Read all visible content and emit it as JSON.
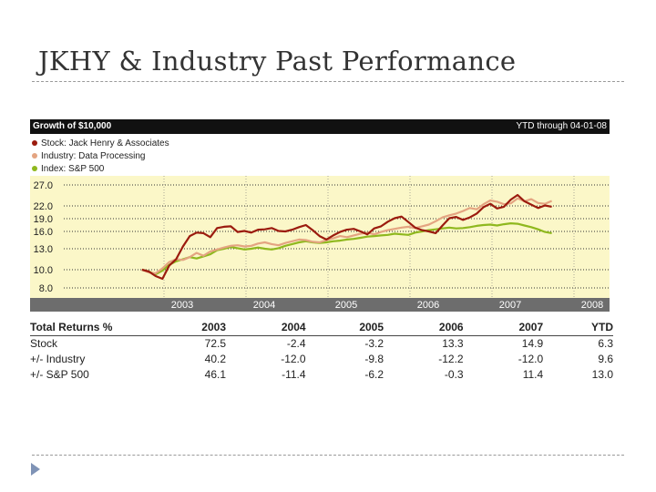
{
  "slide": {
    "title": "JKHY & Industry Past Performance"
  },
  "chart_data": {
    "type": "line",
    "title": "Growth of $10,000",
    "subtitle": "YTD through 04-01-08",
    "legend": [
      {
        "name": "Stock: Jack Henry & Associates",
        "color": "#9b1b0e"
      },
      {
        "name": "Industry: Data Processing",
        "color": "#e4a481"
      },
      {
        "name": "Index: S&P 500",
        "color": "#8fb81e"
      }
    ],
    "y_ticks": [
      8.0,
      10.0,
      13.0,
      16.0,
      19.0,
      22.0,
      27.0
    ],
    "y_tick_labels": [
      "8.0",
      "10.0",
      "13.0",
      "16.0",
      "19.0",
      "22.0",
      "27.0"
    ],
    "x_ticks": [
      "2003",
      "2004",
      "2005",
      "2006",
      "2007",
      "2008"
    ],
    "x_range": [
      2002.5,
      2008.3
    ],
    "x_step": 0.0833,
    "x_start": 2002.5,
    "series": [
      {
        "name": "Stock: Jack Henry & Associates",
        "color": "#9b1b0e",
        "values": [
          10.0,
          9.8,
          9.3,
          9.0,
          10.6,
          11.5,
          13.4,
          15.2,
          15.8,
          15.7,
          15.0,
          16.8,
          17.1,
          17.2,
          15.9,
          16.1,
          15.8,
          16.4,
          16.5,
          16.8,
          16.1,
          16.0,
          16.4,
          17.0,
          17.5,
          16.3,
          15.2,
          14.6,
          15.3,
          15.9,
          16.4,
          16.6,
          16.0,
          15.5,
          16.7,
          17.2,
          18.3,
          19.1,
          19.5,
          18.2,
          16.9,
          16.3,
          16.0,
          15.7,
          17.4,
          19.1,
          19.4,
          18.7,
          19.3,
          20.2,
          21.7,
          22.5,
          21.4,
          21.8,
          23.5,
          24.6,
          23.1,
          22.3,
          21.5,
          22.1,
          21.8
        ],
        "points": null
      },
      {
        "name": "Industry: Data Processing",
        "color": "#e4a481",
        "values": [
          10.0,
          9.7,
          9.6,
          10.2,
          11.1,
          11.5,
          11.4,
          11.8,
          12.4,
          12.0,
          12.6,
          12.9,
          13.2,
          13.5,
          13.6,
          13.4,
          13.5,
          13.9,
          14.1,
          13.8,
          13.6,
          14.0,
          14.3,
          14.6,
          14.5,
          14.2,
          14.1,
          14.5,
          14.8,
          15.2,
          15.0,
          15.3,
          15.6,
          15.8,
          15.5,
          15.9,
          16.3,
          16.6,
          16.9,
          17.1,
          16.8,
          17.2,
          17.6,
          18.4,
          19.3,
          19.8,
          20.2,
          20.8,
          21.5,
          21.2,
          22.4,
          23.3,
          23.0,
          22.4,
          22.6,
          23.8,
          23.1,
          23.6,
          22.7,
          22.5,
          23.2
        ],
        "points": null
      },
      {
        "name": "Index: S&P 500",
        "color": "#8fb81e",
        "values": [
          10.0,
          9.8,
          9.5,
          9.9,
          10.7,
          11.2,
          11.5,
          11.8,
          11.6,
          11.9,
          12.2,
          12.8,
          13.0,
          13.3,
          13.1,
          12.9,
          13.0,
          13.2,
          13.0,
          12.9,
          13.1,
          13.5,
          13.8,
          14.1,
          14.3,
          14.1,
          14.0,
          14.1,
          14.3,
          14.4,
          14.6,
          14.7,
          14.9,
          15.1,
          15.2,
          15.3,
          15.4,
          15.6,
          15.5,
          15.4,
          15.8,
          16.0,
          16.3,
          16.5,
          16.7,
          16.9,
          16.7,
          16.8,
          17.0,
          17.3,
          17.5,
          17.6,
          17.4,
          17.7,
          17.9,
          17.8,
          17.4,
          17.0,
          16.5,
          15.9,
          15.7
        ],
        "points": null
      }
    ]
  },
  "returns_table": {
    "header": [
      "Total Returns %",
      "2003",
      "2004",
      "2005",
      "2006",
      "2007",
      "YTD"
    ],
    "rows": [
      {
        "label": "Stock",
        "values": [
          "72.5",
          "-2.4",
          "-3.2",
          "13.3",
          "14.9",
          "6.3"
        ]
      },
      {
        "label": "+/- Industry",
        "values": [
          "40.2",
          "-12.0",
          "-9.8",
          "-12.2",
          "-12.0",
          "9.6"
        ]
      },
      {
        "label": "+/- S&P 500",
        "values": [
          "46.1",
          "-11.4",
          "-6.2",
          "-0.3",
          "11.4",
          "13.0"
        ]
      }
    ]
  }
}
